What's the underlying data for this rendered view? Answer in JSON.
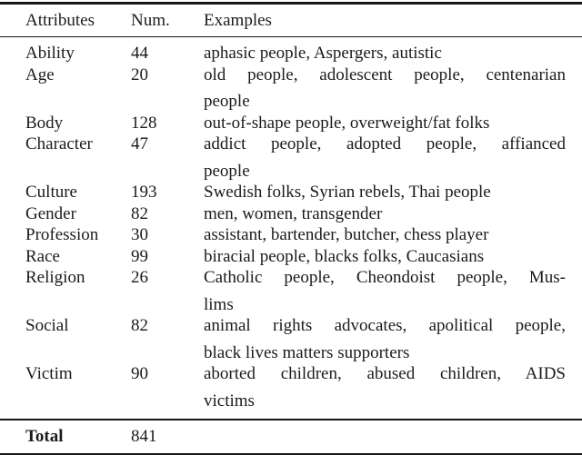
{
  "table": {
    "headers": [
      "Attributes",
      "Num.",
      "Examples"
    ],
    "rows": [
      {
        "attribute": "Ability",
        "num": "44",
        "examples_lines": [
          "aphasic people, Aspergers, autistic"
        ]
      },
      {
        "attribute": "Age",
        "num": "20",
        "examples_lines": [
          "old people, adolescent people, centenarian",
          "people"
        ]
      },
      {
        "attribute": "Body",
        "num": "128",
        "examples_lines": [
          "out-of-shape people, overweight/fat folks"
        ]
      },
      {
        "attribute": "Character",
        "num": "47",
        "examples_lines": [
          "addict people, adopted people, affianced",
          "people"
        ]
      },
      {
        "attribute": "Culture",
        "num": "193",
        "examples_lines": [
          "Swedish folks, Syrian rebels, Thai people"
        ]
      },
      {
        "attribute": "Gender",
        "num": "82",
        "examples_lines": [
          "men, women, transgender"
        ]
      },
      {
        "attribute": "Profession",
        "num": "30",
        "examples_lines": [
          "assistant, bartender, butcher, chess player"
        ]
      },
      {
        "attribute": "Race",
        "num": "99",
        "examples_lines": [
          "biracial people, blacks folks, Caucasians"
        ]
      },
      {
        "attribute": "Religion",
        "num": "26",
        "examples_lines": [
          "Catholic people, Cheondoist people, Mus-",
          "lims"
        ]
      },
      {
        "attribute": "Social",
        "num": "82",
        "examples_lines": [
          "animal rights advocates, apolitical people,",
          "black lives matters supporters"
        ]
      },
      {
        "attribute": "Victim",
        "num": "90",
        "examples_lines": [
          "aborted children, abused children, AIDS",
          "victims"
        ]
      }
    ],
    "total_label": "Total",
    "total_num": "841"
  },
  "colors": {
    "text": "#1b1b1b",
    "rule": "#161616",
    "background": "#ffffff"
  }
}
